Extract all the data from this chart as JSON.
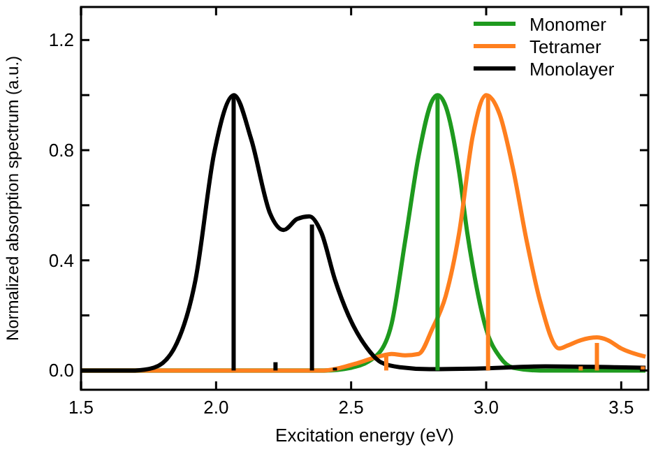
{
  "chart_data": {
    "type": "line",
    "xlabel": "Excitation energy (eV)",
    "ylabel": "Normalized absorption spectrum (a.u.)",
    "xlim": [
      1.5,
      3.6
    ],
    "ylim": [
      -0.07,
      1.32
    ],
    "xticks": [
      1.5,
      {
        "value": 2,
        "label": "2.0"
      },
      2.5,
      {
        "value": 3,
        "label": "3.0"
      },
      3.5
    ],
    "yticks": [
      {
        "value": 0,
        "label": "0.0"
      },
      {
        "value": 0.2,
        "label": null
      },
      0.4,
      {
        "value": 0.6,
        "label": null
      },
      0.8,
      {
        "value": 1,
        "label": null
      },
      1.2
    ],
    "legend": "top right",
    "grid": false,
    "series": [
      {
        "name": "Monomer",
        "color": "#1e9a1e",
        "x": [
          1.5,
          2.4,
          2.5,
          2.6,
          2.65,
          2.7,
          2.75,
          2.8,
          2.82,
          2.85,
          2.9,
          2.93,
          2.95,
          3.0,
          3.05,
          3.1,
          3.2,
          3.59
        ],
        "values": [
          0,
          0,
          0.01,
          0.06,
          0.17,
          0.47,
          0.78,
          0.98,
          1.0,
          0.96,
          0.72,
          0.5,
          0.38,
          0.15,
          0.05,
          0.01,
          0,
          0
        ]
      },
      {
        "name": "Tetramer",
        "color": "#ff7f1e",
        "x": [
          1.5,
          2.4,
          2.5,
          2.6,
          2.65,
          2.7,
          2.75,
          2.8,
          2.85,
          2.9,
          2.95,
          3.0,
          3.05,
          3.1,
          3.15,
          3.2,
          3.27,
          3.3,
          3.35,
          3.41,
          3.45,
          3.5,
          3.59
        ],
        "values": [
          0,
          0,
          0.02,
          0.05,
          0.06,
          0.055,
          0.06,
          0.15,
          0.27,
          0.5,
          0.85,
          1.0,
          0.93,
          0.73,
          0.47,
          0.25,
          0.08,
          0.09,
          0.11,
          0.12,
          0.11,
          0.08,
          0.05
        ]
      },
      {
        "name": "Monolayer",
        "color": "#000000",
        "x": [
          1.5,
          1.7,
          1.77,
          1.855,
          1.924,
          1.993,
          2.066,
          2.13,
          2.2,
          2.25,
          2.3,
          2.345,
          2.39,
          2.44,
          2.49,
          2.56,
          2.61,
          2.68,
          2.79,
          2.96,
          3.22,
          3.48,
          3.59
        ],
        "values": [
          0,
          0,
          0.01,
          0.1,
          0.33,
          0.79,
          1.0,
          0.84,
          0.57,
          0.51,
          0.55,
          0.56,
          0.5,
          0.33,
          0.2,
          0.08,
          0.03,
          0.012,
          0.005,
          0.007,
          0.015,
          0.012,
          0.01
        ]
      },
      {
        "type": "bar",
        "color": "#000000",
        "x": [
          2.065,
          2.22,
          2.355,
          2.44
        ],
        "values": [
          1.0,
          0.03,
          0.53,
          0.01
        ]
      },
      {
        "type": "bar",
        "color": "#1e9a1e",
        "x": [
          2.82
        ],
        "values": [
          1.0
        ]
      },
      {
        "type": "bar",
        "color": "#ff7f1e",
        "x": [
          2.63,
          3.007,
          3.35,
          3.41,
          3.58
        ],
        "values": [
          0.06,
          1.0,
          0.015,
          0.1,
          0.015
        ]
      }
    ]
  }
}
